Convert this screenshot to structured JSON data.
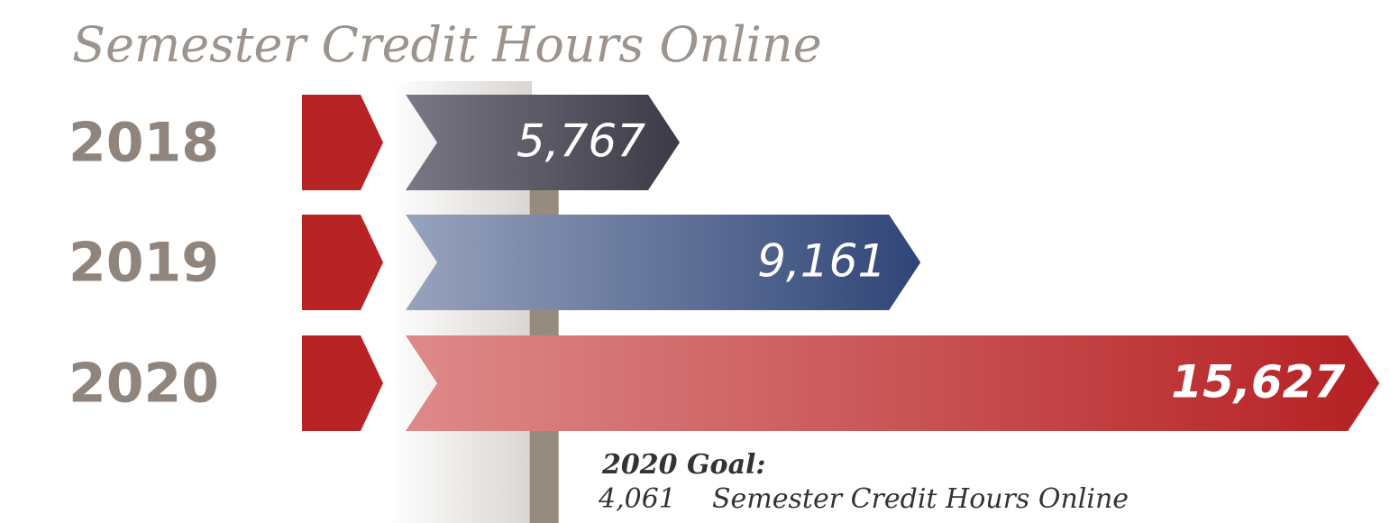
{
  "chart_data": {
    "type": "bar",
    "orientation": "horizontal",
    "title": "Semester Credit Hours Online",
    "categories": [
      "2018",
      "2019",
      "2020"
    ],
    "values": [
      5767,
      9161,
      15627
    ],
    "value_labels": [
      "5,767",
      "9,161",
      "15,627"
    ],
    "colors": [
      {
        "from": "#7b7785",
        "to": "#3d3a47"
      },
      {
        "from": "#97a3bd",
        "to": "#2f4577"
      },
      {
        "from": "#de8a8a",
        "to": "#b52023"
      }
    ],
    "xlim": [
      0,
      15700
    ],
    "goal": {
      "label": "2020 Goal:",
      "value": 4061,
      "value_label": "4,061",
      "text": "Semester Credit Hours Online"
    }
  }
}
